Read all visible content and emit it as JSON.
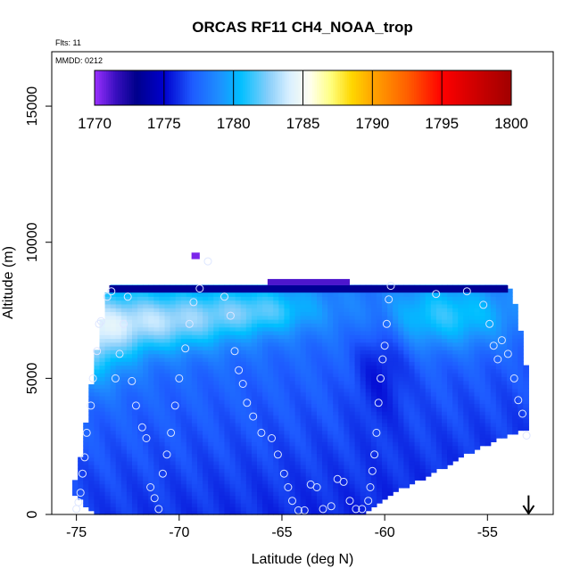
{
  "chart_data": {
    "type": "heatmap",
    "title": "ORCAS RF11 CH4_NOAA_trop",
    "info_lines": [
      "Flts: 11",
      "MMDD: 0212"
    ],
    "xlabel": "Latitude (deg N)",
    "ylabel": "Altitude (m)",
    "xlim": [
      -76.2,
      -51.8
    ],
    "ylim": [
      0,
      17000
    ],
    "x_ticks": [
      -75,
      -70,
      -65,
      -60,
      -55
    ],
    "x_tick_labels": [
      "-75",
      "-70",
      "-65",
      "-60",
      "-55"
    ],
    "y_ticks": [
      0,
      5000,
      10000,
      15000
    ],
    "y_tick_labels": [
      "0",
      "5000",
      "10000",
      "15000"
    ],
    "colorbar": {
      "min": 1770,
      "max": 1800,
      "ticks": [
        1770,
        1775,
        1780,
        1785,
        1790,
        1795,
        1800
      ],
      "tick_labels": [
        "1770",
        "1775",
        "1780",
        "1785",
        "1790",
        "1795",
        "1800"
      ],
      "stops": [
        {
          "value": 1770,
          "color": "#9b30ff"
        },
        {
          "value": 1771.5,
          "color": "#3a0fc0"
        },
        {
          "value": 1773,
          "color": "#00008b"
        },
        {
          "value": 1775,
          "color": "#0000cd"
        },
        {
          "value": 1777,
          "color": "#1e5aff"
        },
        {
          "value": 1779,
          "color": "#1e90ff"
        },
        {
          "value": 1780.5,
          "color": "#00bfff"
        },
        {
          "value": 1782.5,
          "color": "#87cefa"
        },
        {
          "value": 1784,
          "color": "#d8efff"
        },
        {
          "value": 1785.5,
          "color": "#fffff0"
        },
        {
          "value": 1787,
          "color": "#ffff80"
        },
        {
          "value": 1788.5,
          "color": "#ffd700"
        },
        {
          "value": 1790,
          "color": "#ffa500"
        },
        {
          "value": 1792.5,
          "color": "#ff6000"
        },
        {
          "value": 1795,
          "color": "#ff0000"
        },
        {
          "value": 1797.5,
          "color": "#cd0000"
        },
        {
          "value": 1800,
          "color": "#a00000"
        }
      ]
    },
    "surface": {
      "lat_range": [
        -75.2,
        -53.0
      ],
      "floor_lat": [
        -75.2,
        -74.8,
        -74.6,
        -74.3,
        -74.0,
        -73.6,
        -73.2,
        -72.8,
        -72.0,
        -71.0,
        -70.0,
        -69.0,
        -68.0,
        -66.5,
        -65.0,
        -63.5,
        -62.5,
        -61.5,
        -61.0,
        -60.7,
        -60.3,
        -60.0,
        -59.4,
        -58.7,
        -58.0,
        -57.3,
        -56.6,
        -55.9,
        -55.2,
        -54.5,
        -53.8,
        -53.2,
        -53.0
      ],
      "floor_alt": [
        800,
        600,
        350,
        150,
        0,
        0,
        0,
        0,
        0,
        0,
        0,
        0,
        0,
        0,
        0,
        0,
        0,
        0,
        0,
        150,
        350,
        600,
        850,
        1100,
        1350,
        1650,
        1950,
        2250,
        2500,
        2750,
        2950,
        3100,
        3200
      ],
      "top_lat": [
        -75.2,
        -74.8,
        -74.4,
        -74.1,
        -73.8,
        -73.6,
        -73.4,
        -54.0,
        -53.8,
        -53.5,
        -53.3,
        -53.1,
        -53.0
      ],
      "top_alt": [
        800,
        2100,
        4100,
        5700,
        6900,
        7700,
        8400,
        8400,
        8100,
        7300,
        6300,
        5300,
        4900
      ],
      "cap": [
        {
          "lat": [
            -73.4,
            -54.0
          ],
          "alt": [
            8150,
            8420
          ],
          "value": 1773.3
        },
        {
          "lat": [
            -65.7,
            -61.7
          ],
          "alt": [
            8420,
            8650
          ],
          "value": 1771.2
        },
        {
          "lat": [
            -69.4,
            -69.0
          ],
          "alt": [
            9380,
            9620
          ],
          "value": 1770.5
        }
      ],
      "cells": {
        "lon_count": 84,
        "alt_count": 64
      },
      "anomalies": [
        {
          "lat": -71.0,
          "alt": 7100,
          "sigma_lat": 2.6,
          "sigma_alt": 750,
          "value": 1781.5
        },
        {
          "lat": -74.5,
          "alt": 6400,
          "sigma_lat": 1.5,
          "sigma_alt": 1100,
          "value": 1781.0
        },
        {
          "lat": -57.0,
          "alt": 7300,
          "sigma_lat": 2.4,
          "sigma_alt": 800,
          "value": 1780.0
        },
        {
          "lat": -66.0,
          "alt": 7500,
          "sigma_lat": 2.0,
          "sigma_alt": 600,
          "value": 1779.8
        },
        {
          "lat": -60.2,
          "alt": 5700,
          "sigma_lat": 0.9,
          "sigma_alt": 1500,
          "value": 1774.8
        }
      ]
    },
    "flight_points": [
      [
        -75.0,
        200
      ],
      [
        -74.9,
        450
      ],
      [
        -74.8,
        800
      ],
      [
        -74.7,
        1500
      ],
      [
        -74.6,
        2100
      ],
      [
        -74.5,
        3000
      ],
      [
        -74.3,
        4000
      ],
      [
        -74.2,
        5000
      ],
      [
        -74.0,
        6000
      ],
      [
        -73.9,
        7000
      ],
      [
        -73.8,
        7100
      ],
      [
        -73.5,
        8000
      ],
      [
        -73.3,
        8200
      ],
      [
        -73.1,
        5000
      ],
      [
        -72.9,
        5900
      ],
      [
        -72.7,
        7000
      ],
      [
        -72.5,
        8000
      ],
      [
        -72.3,
        4900
      ],
      [
        -72.1,
        4000
      ],
      [
        -71.8,
        3200
      ],
      [
        -71.6,
        2800
      ],
      [
        -71.4,
        1000
      ],
      [
        -71.2,
        600
      ],
      [
        -71.0,
        200
      ],
      [
        -70.8,
        1500
      ],
      [
        -70.6,
        2200
      ],
      [
        -70.4,
        3000
      ],
      [
        -70.2,
        4000
      ],
      [
        -70.0,
        5000
      ],
      [
        -69.7,
        6100
      ],
      [
        -69.5,
        7000
      ],
      [
        -69.3,
        7800
      ],
      [
        -69.0,
        8300
      ],
      [
        -68.6,
        9300
      ],
      [
        -67.8,
        8000
      ],
      [
        -67.5,
        7300
      ],
      [
        -67.3,
        6000
      ],
      [
        -67.1,
        5300
      ],
      [
        -66.9,
        4800
      ],
      [
        -66.7,
        4100
      ],
      [
        -66.4,
        3600
      ],
      [
        -66.0,
        3000
      ],
      [
        -65.5,
        2800
      ],
      [
        -65.2,
        2200
      ],
      [
        -64.9,
        1500
      ],
      [
        -64.7,
        1000
      ],
      [
        -64.5,
        500
      ],
      [
        -64.2,
        150
      ],
      [
        -63.9,
        150
      ],
      [
        -63.6,
        1100
      ],
      [
        -63.3,
        1000
      ],
      [
        -63.0,
        200
      ],
      [
        -62.6,
        300
      ],
      [
        -62.3,
        1300
      ],
      [
        -62.0,
        1200
      ],
      [
        -61.7,
        500
      ],
      [
        -61.4,
        200
      ],
      [
        -61.1,
        200
      ],
      [
        -60.8,
        500
      ],
      [
        -60.7,
        1000
      ],
      [
        -60.6,
        1600
      ],
      [
        -60.5,
        2200
      ],
      [
        -60.4,
        3000
      ],
      [
        -60.3,
        4100
      ],
      [
        -60.2,
        5000
      ],
      [
        -60.1,
        5700
      ],
      [
        -60.0,
        6200
      ],
      [
        -59.9,
        7000
      ],
      [
        -59.8,
        7900
      ],
      [
        -59.7,
        8400
      ],
      [
        -57.5,
        8100
      ],
      [
        -56.0,
        8200
      ],
      [
        -55.2,
        7700
      ],
      [
        -54.9,
        7000
      ],
      [
        -54.7,
        6200
      ],
      [
        -54.5,
        5700
      ],
      [
        -54.3,
        6400
      ],
      [
        -54.0,
        5900
      ],
      [
        -53.7,
        5000
      ],
      [
        -53.5,
        4200
      ],
      [
        -53.3,
        3700
      ],
      [
        -53.1,
        2900
      ]
    ],
    "marker": {
      "lat": -53.0,
      "alt_top": 700,
      "alt_bottom": 0
    }
  }
}
